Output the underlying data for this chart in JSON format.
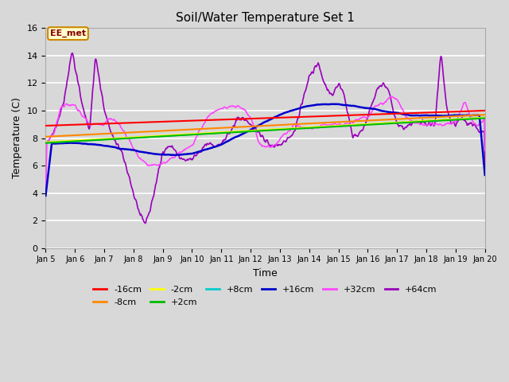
{
  "title": "Soil/Water Temperature Set 1",
  "xlabel": "Time",
  "ylabel": "Temperature (C)",
  "ylim": [
    0,
    16
  ],
  "yticks": [
    0,
    2,
    4,
    6,
    8,
    10,
    12,
    14,
    16
  ],
  "xtick_labels": [
    "Jan 5",
    "Jan 6",
    "Jan 7",
    "Jan 8",
    "Jan 9",
    "Jan 10",
    "Jan 11",
    "Jan 12",
    "Jan 13",
    "Jan 14",
    "Jan 15",
    "Jan 16",
    "Jan 17",
    "Jan 18",
    "Jan 19",
    "Jan 20"
  ],
  "bg_color": "#d8d8d8",
  "plot_bg_color": "#d8d8d8",
  "annotation_text": "EE_met",
  "annotation_bg": "#ffffcc",
  "annotation_border": "#cc8800",
  "annotation_text_color": "#880000",
  "series_colors": {
    "-16cm": "#ff0000",
    "-8cm": "#ff8800",
    "-2cm": "#ffff00",
    "+2cm": "#00bb00",
    "+8cm": "#00cccc",
    "+16cm": "#0000cc",
    "+32cm": "#ff44ff",
    "+64cm": "#9900bb"
  },
  "legend_order": [
    "-16cm",
    "-8cm",
    "-2cm",
    "+2cm",
    "+8cm",
    "+16cm",
    "+32cm",
    "+64cm"
  ],
  "key64_x": [
    0,
    0.3,
    0.6,
    0.9,
    1.2,
    1.5,
    1.7,
    2.0,
    2.3,
    2.6,
    2.8,
    3.0,
    3.2,
    3.4,
    3.6,
    3.8,
    4.0,
    4.3,
    4.6,
    5.0,
    5.5,
    6.0,
    6.3,
    6.6,
    7.0,
    7.3,
    7.5,
    7.7,
    7.85,
    8.0,
    8.5,
    9.0,
    9.3,
    9.6,
    9.8,
    10.0,
    10.2,
    10.5,
    10.8,
    11.0,
    11.3,
    11.5,
    11.7,
    12.0,
    12.3,
    12.5,
    12.8,
    13.0,
    13.3,
    13.5,
    13.7,
    13.85,
    14.0,
    14.2,
    14.4,
    14.6,
    14.8,
    15.0
  ],
  "key64_y": [
    7.5,
    8.5,
    10.5,
    14.3,
    11.0,
    8.5,
    14.1,
    10.0,
    8.0,
    7.0,
    5.5,
    4.0,
    2.5,
    1.8,
    3.0,
    5.0,
    7.0,
    7.5,
    6.5,
    6.5,
    7.5,
    7.5,
    8.5,
    9.5,
    9.0,
    8.5,
    7.8,
    7.5,
    7.5,
    7.5,
    8.5,
    12.5,
    13.5,
    11.5,
    11.0,
    12.0,
    11.0,
    8.0,
    8.5,
    9.5,
    11.4,
    12.0,
    11.5,
    9.0,
    8.8,
    9.0,
    9.3,
    9.0,
    9.0,
    14.3,
    10.0,
    9.2,
    9.0,
    9.5,
    9.0,
    9.0,
    8.5,
    8.4
  ],
  "key32_x": [
    0,
    0.3,
    0.5,
    0.7,
    1.0,
    1.3,
    1.5,
    1.8,
    2.0,
    2.2,
    2.5,
    2.8,
    3.0,
    3.2,
    3.5,
    3.8,
    4.0,
    4.3,
    4.6,
    5.0,
    5.5,
    5.8,
    6.0,
    6.3,
    6.5,
    6.8,
    7.0,
    7.3,
    7.5,
    7.8,
    8.0,
    8.3,
    8.5,
    8.8,
    9.0,
    9.3,
    9.5,
    9.8,
    10.0,
    10.3,
    10.5,
    10.8,
    11.0,
    11.3,
    11.5,
    11.8,
    12.0,
    12.3,
    12.5,
    12.8,
    13.0,
    13.3,
    13.5,
    13.8,
    14.0,
    14.3,
    14.6,
    14.8,
    15.0
  ],
  "key32_y": [
    7.6,
    8.5,
    10.2,
    10.5,
    10.3,
    9.5,
    9.0,
    9.0,
    9.1,
    9.5,
    9.0,
    8.0,
    7.2,
    6.5,
    6.0,
    6.0,
    6.2,
    6.5,
    7.0,
    7.5,
    9.5,
    10.0,
    10.2,
    10.2,
    10.3,
    10.0,
    9.5,
    7.5,
    7.4,
    7.4,
    8.0,
    8.5,
    9.0,
    8.8,
    8.7,
    8.8,
    9.0,
    9.0,
    9.0,
    9.0,
    9.2,
    9.5,
    9.5,
    10.5,
    10.5,
    11.0,
    10.8,
    9.5,
    9.2,
    9.0,
    9.0,
    9.0,
    9.0,
    9.0,
    9.2,
    10.7,
    9.0,
    9.0,
    9.5
  ]
}
